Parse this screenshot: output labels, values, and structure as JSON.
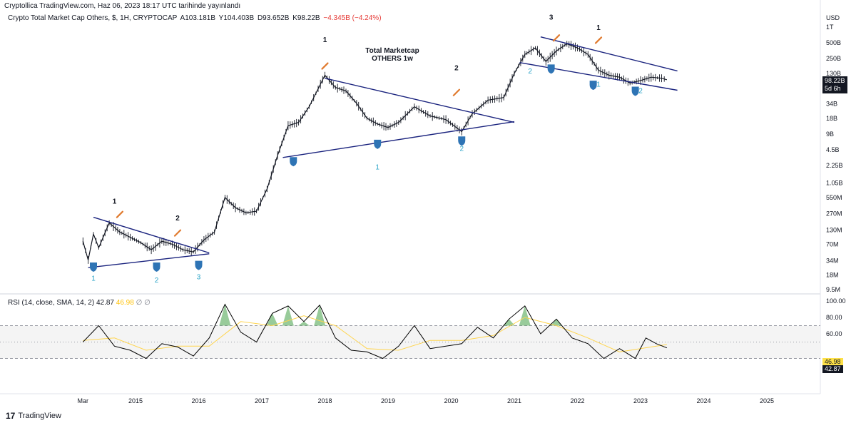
{
  "publish_line": "Cryptollica TradingView.com, Haz 06, 2023 18:17 UTC tarihinde yayınlandı",
  "legend": {
    "symbol": "Crypto Total Market Cap Others, $, 1H, CRYPTOCAP",
    "open": "A103.181B",
    "high": "Y104.403B",
    "low": "D93.652B",
    "close": "K98.22B",
    "change": "−4.345B (−4.24%)"
  },
  "rsi_legend": {
    "label": "RSI (14, close, SMA, 14, 2)",
    "value": "42.87",
    "ma_value": "46.98",
    "zero1": "∅",
    "zero2": "∅"
  },
  "brand": {
    "logo": "17",
    "text": "TradingView"
  },
  "annotations": {
    "title_line1": "Total Marketcap",
    "title_line2": "OTHERS 1w"
  },
  "colors": {
    "price": "#131722",
    "trendline": "#1a237e",
    "rsi_line": "#000000",
    "rsi_ma": "#ffd54f",
    "overbought_fill": "#43a047",
    "oversold_fill": "#e53935",
    "rsi_band": "#f4f4f4",
    "shield": "#2e74b5",
    "count_blue": "#29a3c7",
    "rocket": "#e07a2e"
  },
  "chart_data": [
    {
      "type": "line",
      "title": "",
      "scale": "log",
      "currency": "USD",
      "y_axis_labels": [
        "1T",
        "500B",
        "250B",
        "130B",
        "68B",
        "34B",
        "18B",
        "9B",
        "4.5B",
        "2.25B",
        "1.05B",
        "550M",
        "270M",
        "130M",
        "70M",
        "34M",
        "18M",
        "9.5M"
      ],
      "x_axis_labels": [
        "Mar",
        "2015",
        "2016",
        "2017",
        "2018",
        "2019",
        "2020",
        "2021",
        "2022",
        "2023",
        "2024",
        "2025"
      ],
      "current_value_label": "98.22B",
      "countdown_label": "5d 6h",
      "series": [
        {
          "name": "",
          "points": [
            [
              "2014-03",
              80
            ],
            [
              "2014-04",
              35
            ],
            [
              "2014-05",
              110
            ],
            [
              "2014-06",
              60
            ],
            [
              "2014-08",
              180
            ],
            [
              "2014-10",
              120
            ],
            [
              "2014-12",
              95
            ],
            [
              "2015-02",
              75
            ],
            [
              "2015-04",
              55
            ],
            [
              "2015-06",
              80
            ],
            [
              "2015-08",
              70
            ],
            [
              "2015-10",
              55
            ],
            [
              "2015-12",
              50
            ],
            [
              "2016-02",
              85
            ],
            [
              "2016-04",
              120
            ],
            [
              "2016-06",
              550
            ],
            [
              "2016-08",
              350
            ],
            [
              "2016-10",
              280
            ],
            [
              "2016-12",
              300
            ],
            [
              "2017-02",
              800
            ],
            [
              "2017-04",
              3500
            ],
            [
              "2017-06",
              13000
            ],
            [
              "2017-08",
              15000
            ],
            [
              "2017-10",
              30000
            ],
            [
              "2018-01",
              120000
            ],
            [
              "2018-03",
              70000
            ],
            [
              "2018-05",
              60000
            ],
            [
              "2018-07",
              35000
            ],
            [
              "2018-09",
              18000
            ],
            [
              "2018-11",
              14000
            ],
            [
              "2019-01",
              12000
            ],
            [
              "2019-03",
              15000
            ],
            [
              "2019-06",
              30000
            ],
            [
              "2019-09",
              20000
            ],
            [
              "2019-12",
              17000
            ],
            [
              "2020-03",
              10000
            ],
            [
              "2020-05",
              22000
            ],
            [
              "2020-08",
              40000
            ],
            [
              "2020-11",
              45000
            ],
            [
              "2021-01",
              130000
            ],
            [
              "2021-03",
              300000
            ],
            [
              "2021-05",
              400000
            ],
            [
              "2021-07",
              220000
            ],
            [
              "2021-09",
              350000
            ],
            [
              "2021-11",
              480000
            ],
            [
              "2022-01",
              400000
            ],
            [
              "2022-03",
              300000
            ],
            [
              "2022-05",
              150000
            ],
            [
              "2022-07",
              120000
            ],
            [
              "2022-09",
              110000
            ],
            [
              "2022-11",
              85000
            ],
            [
              "2023-01",
              95000
            ],
            [
              "2023-03",
              110000
            ],
            [
              "2023-05",
              105000
            ],
            [
              "2023-06",
              98220
            ]
          ]
        }
      ],
      "pattern_labels": [
        "1",
        "2",
        "1",
        "2",
        "3",
        "1",
        "2",
        "3",
        "1",
        "2",
        "3",
        "1",
        "2",
        "1",
        "2",
        "1",
        "2",
        "3"
      ]
    },
    {
      "type": "line",
      "title": "",
      "y_axis_labels": [
        "100.00",
        "80.00",
        "60.00"
      ],
      "ylim": [
        0,
        100
      ],
      "levels": [
        70,
        50,
        30
      ],
      "current_rsi_label": "42.87",
      "current_ma_label": "46.98",
      "series": [
        {
          "name": "",
          "points": [
            [
              "2014-03",
              50
            ],
            [
              "2014-06",
              70
            ],
            [
              "2014-09",
              45
            ],
            [
              "2014-12",
              40
            ],
            [
              "2015-03",
              30
            ],
            [
              "2015-06",
              48
            ],
            [
              "2015-09",
              44
            ],
            [
              "2015-12",
              33
            ],
            [
              "2016-03",
              55
            ],
            [
              "2016-06",
              96
            ],
            [
              "2016-09",
              62
            ],
            [
              "2016-12",
              50
            ],
            [
              "2017-03",
              85
            ],
            [
              "2017-06",
              94
            ],
            [
              "2017-09",
              75
            ],
            [
              "2017-12",
              95
            ],
            [
              "2018-03",
              55
            ],
            [
              "2018-06",
              40
            ],
            [
              "2018-09",
              38
            ],
            [
              "2018-12",
              30
            ],
            [
              "2019-03",
              45
            ],
            [
              "2019-06",
              70
            ],
            [
              "2019-09",
              42
            ],
            [
              "2019-12",
              45
            ],
            [
              "2020-03",
              48
            ],
            [
              "2020-06",
              68
            ],
            [
              "2020-09",
              55
            ],
            [
              "2020-12",
              78
            ],
            [
              "2021-03",
              94
            ],
            [
              "2021-06",
              60
            ],
            [
              "2021-09",
              78
            ],
            [
              "2021-12",
              55
            ],
            [
              "2022-03",
              48
            ],
            [
              "2022-06",
              30
            ],
            [
              "2022-09",
              42
            ],
            [
              "2022-12",
              30
            ],
            [
              "2023-02",
              55
            ],
            [
              "2023-04",
              48
            ],
            [
              "2023-06",
              42.87
            ]
          ]
        },
        {
          "name": "",
          "points": [
            [
              "2014-03",
              52
            ],
            [
              "2014-09",
              55
            ],
            [
              "2015-03",
              40
            ],
            [
              "2015-09",
              45
            ],
            [
              "2016-03",
              45
            ],
            [
              "2016-09",
              75
            ],
            [
              "2017-03",
              70
            ],
            [
              "2017-09",
              82
            ],
            [
              "2018-03",
              70
            ],
            [
              "2018-09",
              42
            ],
            [
              "2019-03",
              40
            ],
            [
              "2019-09",
              52
            ],
            [
              "2020-03",
              52
            ],
            [
              "2020-09",
              58
            ],
            [
              "2021-03",
              80
            ],
            [
              "2021-09",
              70
            ],
            [
              "2022-03",
              55
            ],
            [
              "2022-09",
              38
            ],
            [
              "2023-03",
              44
            ],
            [
              "2023-06",
              46.98
            ]
          ]
        }
      ]
    }
  ]
}
